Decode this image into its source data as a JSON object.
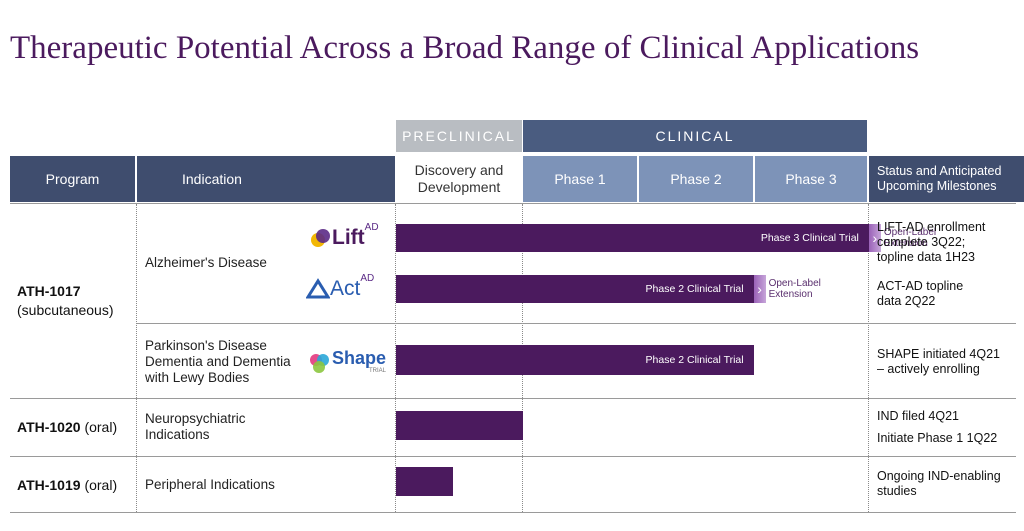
{
  "title": "Therapeutic Potential Across a Broad Range of Clinical Applications",
  "stage_banners": {
    "preclinical": "PRECLINICAL",
    "clinical": "CLINICAL"
  },
  "headers": {
    "program": "Program",
    "indication": "Indication",
    "discovery": "Discovery and Development",
    "phase1": "Phase 1",
    "phase2": "Phase 2",
    "phase3": "Phase 3",
    "status": "Status and Anticipated Upcoming Milestones"
  },
  "colors": {
    "bar": "#4b1a5e",
    "header_dark": "#3f4d6e",
    "header_phase": "#7d93b8",
    "preclinical": "#b9bdc2",
    "clinical": "#4a5c80"
  },
  "programs": [
    {
      "name": "ATH-1017",
      "route": "(subcutaneous)"
    },
    {
      "name": "ATH-1020",
      "route": "(oral)"
    },
    {
      "name": "ATH-1019",
      "route": "(oral)"
    }
  ],
  "indications": {
    "alzheimers": "Alzheimer's Disease",
    "pdd_line1": "Parkinson's Disease",
    "pdd_line2": "Dementia and Dementia",
    "pdd_line3": "with Lewy Bodies",
    "neuro_line1": "Neuropsychiatric",
    "neuro_line2": "Indications",
    "peripheral": "Peripheral Indications"
  },
  "logos": {
    "lift": {
      "main": "Lift",
      "sup": "AD"
    },
    "act": {
      "main": "Act",
      "sup": "AD"
    },
    "shape": {
      "main": "Shape",
      "sub": "TRIAL"
    }
  },
  "bars": [
    {
      "label": "Phase 3 Clinical Trial",
      "progress_phase": 3.0,
      "ext_line1": "Open-Label",
      "ext_line2": "Extension"
    },
    {
      "label": "Phase 2 Clinical Trial",
      "progress_phase": 2.0,
      "ext_line1": "Open-Label",
      "ext_line2": "Extension"
    },
    {
      "label": "Phase 2 Clinical Trial",
      "progress_phase": 2.0
    },
    {
      "label": "",
      "progress_phase": 0.0
    },
    {
      "label": "",
      "progress_phase": -0.55
    }
  ],
  "status": {
    "lift_line1": "LIFT-AD enrollment",
    "lift_line2": "complete 3Q22;",
    "lift_line3": "topline data 1H23",
    "act_line1": "ACT-AD topline",
    "act_line2": "data 2Q22",
    "shape_line1": "SHAPE initiated 4Q21",
    "shape_line2": "– actively enrolling",
    "ath1020_line1": "IND filed 4Q21",
    "ath1020_line2": "Initiate Phase 1 1Q22",
    "ath1019_line1": "Ongoing IND-enabling",
    "ath1019_line2": "studies"
  }
}
